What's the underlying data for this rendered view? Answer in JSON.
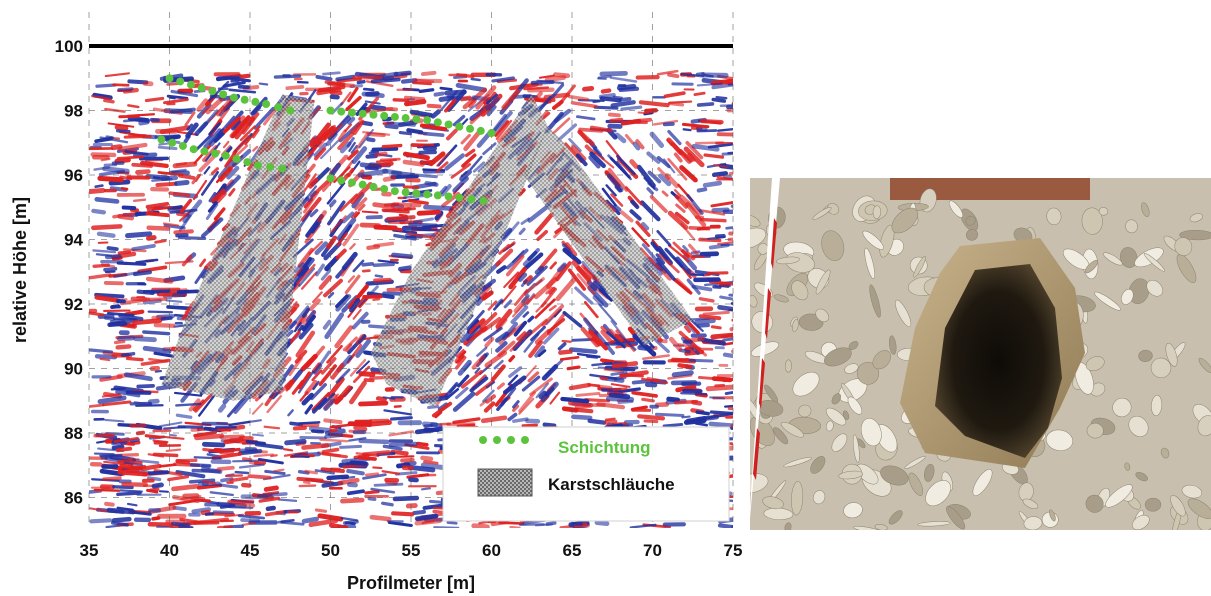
{
  "chart_data": {
    "type": "heatmap",
    "title": "",
    "xlabel": "Profilmeter [m]",
    "ylabel": "relative Höhe [m]",
    "xlim": [
      35,
      75
    ],
    "ylim": [
      85,
      101
    ],
    "x_ticks": [
      "35",
      "40",
      "45",
      "50",
      "55",
      "60",
      "65",
      "70",
      "75"
    ],
    "y_ticks": [
      "86",
      "88",
      "90",
      "92",
      "94",
      "96",
      "98",
      "100"
    ],
    "grid": true,
    "legend_position": "bottom-right",
    "reference_line": {
      "y": 100,
      "color": "#000000"
    },
    "palette": {
      "positive": "#e02020",
      "negative": "#2030a0",
      "schichtung": "#5cc43c",
      "karst": "#9a9a9a"
    },
    "series": [
      {
        "name": "Schichtung",
        "kind": "dotted-line",
        "color": "#5cc43c",
        "segments": [
          [
            [
              40.0,
              99.0
            ],
            [
              42.0,
              98.7
            ],
            [
              44.0,
              98.4
            ],
            [
              46.0,
              98.2
            ],
            [
              47.5,
              98.0
            ]
          ],
          [
            [
              39.5,
              97.1
            ],
            [
              41.5,
              96.8
            ],
            [
              43.5,
              96.6
            ],
            [
              45.5,
              96.3
            ],
            [
              47.0,
              96.2
            ]
          ],
          [
            [
              50.0,
              98.0
            ],
            [
              52.0,
              97.9
            ],
            [
              54.0,
              97.8
            ],
            [
              56.0,
              97.7
            ],
            [
              58.0,
              97.5
            ],
            [
              60.0,
              97.3
            ]
          ],
          [
            [
              50.0,
              95.9
            ],
            [
              52.0,
              95.7
            ],
            [
              54.0,
              95.5
            ],
            [
              56.0,
              95.4
            ],
            [
              58.0,
              95.3
            ],
            [
              59.5,
              95.2
            ]
          ]
        ]
      },
      {
        "name": "Karstschläuche",
        "kind": "hatched-area",
        "color": "#9a9a9a",
        "polygons": [
          [
            [
              41.0,
              91.5
            ],
            [
              47.0,
              98.5
            ],
            [
              49.0,
              98.3
            ],
            [
              47.0,
              89.3
            ],
            [
              44.0,
              89.0
            ],
            [
              39.5,
              89.5
            ]
          ],
          [
            [
              55.0,
              93.0
            ],
            [
              62.5,
              98.5
            ],
            [
              63.5,
              97.5
            ],
            [
              56.5,
              88.8
            ],
            [
              53.5,
              89.5
            ],
            [
              52.5,
              90.5
            ]
          ],
          [
            [
              63.5,
              97.5
            ],
            [
              64.5,
              97.0
            ],
            [
              72.5,
              91.5
            ],
            [
              69.5,
              90.7
            ],
            [
              62.0,
              96.0
            ]
          ]
        ]
      }
    ],
    "legend": [
      {
        "label": "Schichtung",
        "color": "#5cc43c",
        "symbol": "dots"
      },
      {
        "label": "Karstschläuche",
        "color": "#333333",
        "symbol": "hatch"
      }
    ]
  },
  "photo": {
    "subject": "karst-sinkhole-opening-in-limestone-rubble"
  }
}
